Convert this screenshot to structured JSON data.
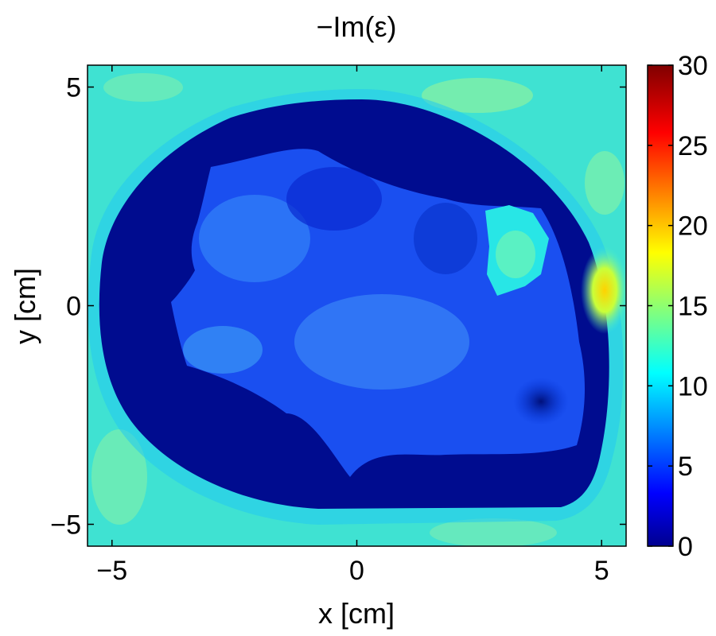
{
  "chart_data": {
    "type": "heatmap",
    "title": "−Im(ε)",
    "xlabel": "x [cm]",
    "ylabel": "y [cm]",
    "xlim": [
      -5.5,
      5.5
    ],
    "ylim": [
      -5.5,
      5.5
    ],
    "x_ticks": [
      -5,
      0,
      5
    ],
    "x_tick_labels": [
      "−5",
      "0",
      "5"
    ],
    "y_ticks": [
      -5,
      0,
      5
    ],
    "y_tick_labels": [
      "−5",
      "0",
      "5"
    ],
    "grid": false,
    "colorbar": {
      "range": [
        0,
        30
      ],
      "ticks": [
        0,
        5,
        10,
        15,
        20,
        25,
        30
      ],
      "tick_labels": [
        "0",
        "5",
        "10",
        "15",
        "20",
        "25",
        "30"
      ],
      "colormap": "jet"
    },
    "regions": [
      {
        "name": "background",
        "approx_value": 11
      },
      {
        "name": "outer ring",
        "approx_value": 1
      },
      {
        "name": "interior",
        "approx_value": 5
      },
      {
        "name": "hot spot",
        "center": [
          5.1,
          0.2
        ],
        "approx_value": 20
      },
      {
        "name": "bright patch",
        "center": [
          3.0,
          1.5
        ],
        "approx_value": 11
      }
    ]
  }
}
